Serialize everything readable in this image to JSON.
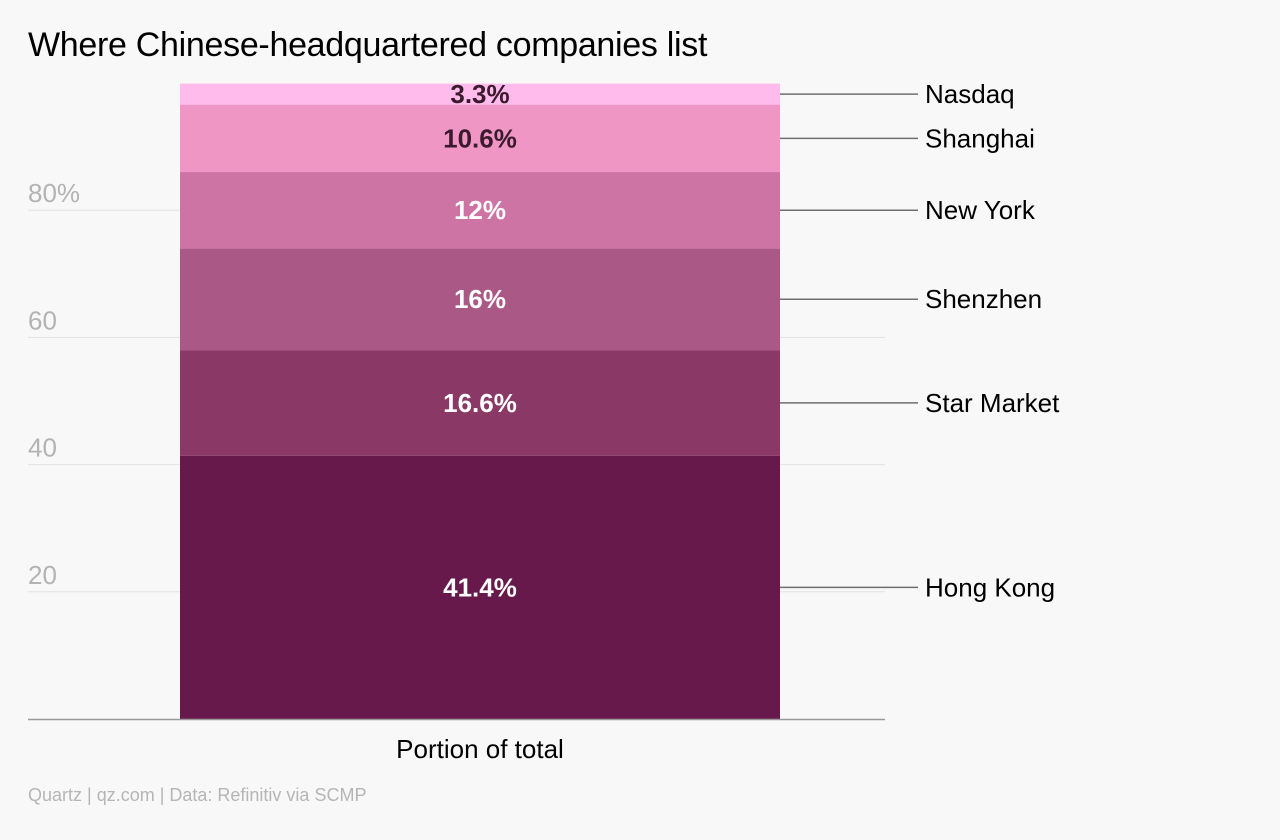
{
  "chart_data": {
    "type": "bar",
    "stacked": true,
    "title": "Where Chinese-headquartered companies list",
    "categories": [
      "Portion of total"
    ],
    "series": [
      {
        "name": "Hong Kong",
        "values": [
          41.4
        ],
        "label": "41.4%",
        "color": "#66194a"
      },
      {
        "name": "Star Market",
        "values": [
          16.6
        ],
        "label": "16.6%",
        "color": "#8a3866"
      },
      {
        "name": "Shenzhen",
        "values": [
          16
        ],
        "label": "16%",
        "color": "#aa5986"
      },
      {
        "name": "New York",
        "values": [
          12
        ],
        "label": "12%",
        "color": "#cd74a4"
      },
      {
        "name": "Shanghai",
        "values": [
          10.6
        ],
        "label": "10.6%",
        "color": "#f096c5"
      },
      {
        "name": "Nasdaq",
        "values": [
          3.3
        ],
        "label": "3.3%",
        "color": "#ffbbec"
      }
    ],
    "xlabel": "",
    "ylabel": "",
    "ylim": [
      0,
      100
    ],
    "yticks": [
      {
        "value": 20,
        "label": "20"
      },
      {
        "value": 40,
        "label": "40"
      },
      {
        "value": 60,
        "label": "60"
      },
      {
        "value": 80,
        "label": "80%"
      }
    ],
    "grid": true,
    "legend": "right, direct labels with leader lines",
    "colors": {
      "background": "#f8f8f8",
      "gridline": "#e2e2e2",
      "axis": "#999999",
      "tick_label": "#b3b3b3",
      "label_light": "#ffffff",
      "label_dark": "#3a1a2c",
      "leader_line": "#6f6f6f",
      "legend_text": "#000000"
    }
  },
  "source": "Quartz | qz.com | Data: Refinitiv via SCMP"
}
